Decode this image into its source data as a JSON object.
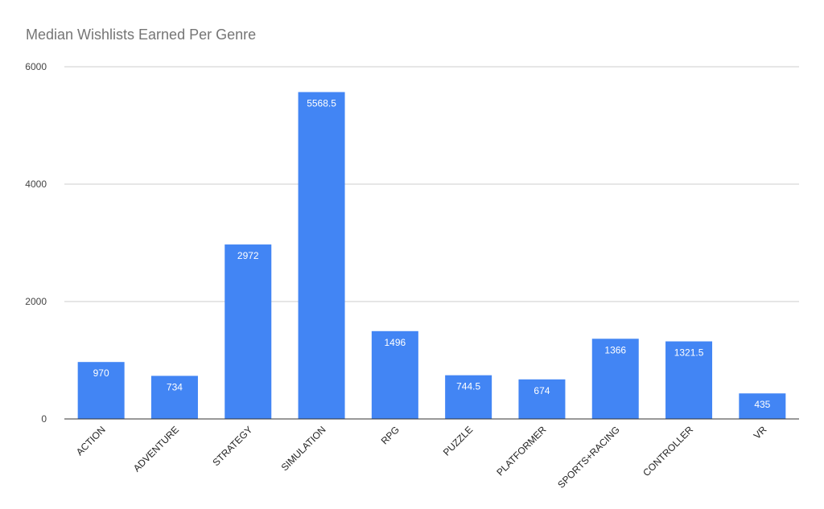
{
  "chart_data": {
    "type": "bar",
    "title": "Median Wishlists Earned Per Genre",
    "xlabel": "",
    "ylabel": "",
    "categories": [
      "ACTION",
      "ADVENTURE",
      "STRATEGY",
      "SIMULATION",
      "RPG",
      "PUZZLE",
      "PLATFORMER",
      "SPORTS+RACING",
      "CONTROLLER",
      "VR"
    ],
    "values": [
      970,
      734,
      2972,
      5568.5,
      1496,
      744.5,
      674,
      1366,
      1321.5,
      435
    ],
    "data_labels": [
      "970",
      "734",
      "2972",
      "5568.5",
      "1496",
      "744.5",
      "674",
      "1366",
      "1321.5",
      "435"
    ],
    "ylim": [
      0,
      6000
    ],
    "yticks": [
      0,
      2000,
      4000,
      6000
    ],
    "ytick_labels": [
      "0",
      "2000",
      "4000",
      "6000"
    ],
    "grid": true,
    "legend": "none",
    "colors": {
      "bar": "#4285f4",
      "grid": "#cccccc",
      "axis": "#333333",
      "title": "#757575",
      "data_label": "#ffffff"
    }
  }
}
